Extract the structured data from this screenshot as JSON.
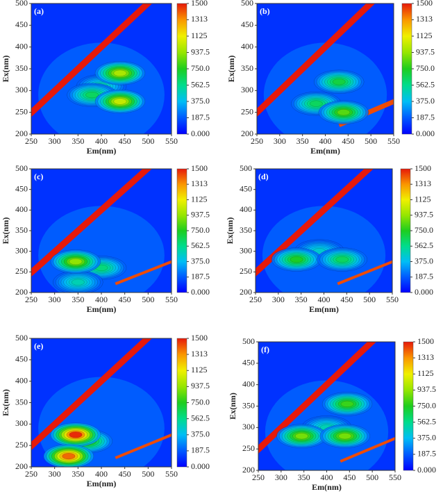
{
  "chart_data": [
    {
      "type": "heatmap",
      "label": "(a)",
      "xlabel": "Em(nm)",
      "ylabel": "Ex(nm)",
      "xlim": [
        250,
        550
      ],
      "ylim": [
        200,
        500
      ],
      "xticks": [
        250,
        300,
        350,
        400,
        450,
        500,
        550
      ],
      "yticks": [
        200,
        250,
        300,
        350,
        400,
        450,
        500
      ],
      "colorbar_lim": [
        0,
        1500
      ],
      "colorbar_ticks": [
        {
          "value": 0,
          "label": "0.000"
        },
        187.5,
        {
          "value": 375,
          "label": "375.0"
        },
        562.5,
        {
          "value": 750,
          "label": "750.0"
        },
        937.5,
        1125,
        1313,
        1500
      ],
      "x": [
        400,
        380,
        440,
        440
      ],
      "y": [
        310,
        290,
        340,
        275
      ],
      "values": [
        500,
        650,
        1000,
        1050
      ]
    },
    {
      "type": "heatmap",
      "label": "(b)",
      "xlabel": "Em(nm)",
      "ylabel": "Ex(nm)",
      "xlim": [
        250,
        550
      ],
      "ylim": [
        200,
        500
      ],
      "xticks": [
        250,
        300,
        350,
        400,
        450,
        500,
        550
      ],
      "yticks": [
        200,
        250,
        300,
        350,
        400,
        450,
        500
      ],
      "colorbar_lim": [
        0,
        1500
      ],
      "colorbar_ticks": [
        {
          "value": 0,
          "label": "0.000"
        },
        187.5,
        {
          "value": 375,
          "label": "375.0"
        },
        562.5,
        {
          "value": 750,
          "label": "750.0"
        },
        937.5,
        1125,
        1313,
        1500
      ],
      "x": [
        430,
        380,
        440
      ],
      "y": [
        320,
        270,
        250
      ],
      "values": [
        700,
        650,
        850
      ]
    },
    {
      "type": "heatmap",
      "label": "(c)",
      "xlabel": "Em(nm)",
      "ylabel": "Ex(nm)",
      "xlim": [
        250,
        550
      ],
      "ylim": [
        200,
        500
      ],
      "xticks": [
        250,
        300,
        350,
        400,
        450,
        500,
        550
      ],
      "yticks": [
        200,
        250,
        300,
        350,
        400,
        450,
        500
      ],
      "colorbar_lim": [
        0,
        1500
      ],
      "colorbar_ticks": [
        {
          "value": 0,
          "label": "0.000"
        },
        187.5,
        {
          "value": 375,
          "label": "375.0"
        },
        562.5,
        {
          "value": 750,
          "label": "750.0"
        },
        937.5,
        1125,
        1313,
        1500
      ],
      "x": [
        400,
        350,
        345
      ],
      "y": [
        260,
        225,
        275
      ],
      "values": [
        600,
        500,
        950
      ]
    },
    {
      "type": "heatmap",
      "label": "(d)",
      "xlabel": "Em(nm)",
      "ylabel": "Ex(nm)",
      "xlim": [
        250,
        550
      ],
      "ylim": [
        200,
        500
      ],
      "xticks": [
        250,
        300,
        350,
        400,
        450,
        500,
        550
      ],
      "yticks": [
        200,
        250,
        300,
        350,
        400,
        450,
        500
      ],
      "colorbar_lim": [
        0,
        1500
      ],
      "colorbar_ticks": [
        {
          "value": 0,
          "label": "0.000"
        },
        187.5,
        {
          "value": 375,
          "label": "375.0"
        },
        562.5,
        {
          "value": 750,
          "label": "750.0"
        },
        937.5,
        1125,
        1313,
        1500
      ],
      "x": [
        390,
        340,
        440
      ],
      "y": [
        300,
        280,
        280
      ],
      "values": [
        450,
        750,
        650
      ]
    },
    {
      "type": "heatmap",
      "label": "(e)",
      "xlabel": "Em(nm)",
      "ylabel": "Ex(nm)",
      "xlim": [
        250,
        550
      ],
      "ylim": [
        200,
        500
      ],
      "xticks": [
        250,
        300,
        350,
        400,
        450,
        500,
        550
      ],
      "yticks": [
        200,
        250,
        300,
        350,
        400,
        450,
        500
      ],
      "colorbar_lim": [
        0,
        1500
      ],
      "colorbar_ticks": [
        {
          "value": 0,
          "label": "0.000"
        },
        187.5,
        {
          "value": 375,
          "label": "375.0"
        },
        562.5,
        {
          "value": 750,
          "label": "750.0"
        },
        937.5,
        1125,
        1313,
        1500
      ],
      "x": [
        370,
        345,
        330
      ],
      "y": [
        260,
        275,
        225
      ],
      "values": [
        800,
        1500,
        1400
      ]
    },
    {
      "type": "heatmap",
      "label": "(f)",
      "xlabel": "Em(nm)",
      "ylabel": "Ex(nm)",
      "xlim": [
        250,
        550
      ],
      "ylim": [
        200,
        500
      ],
      "xticks": [
        250,
        300,
        350,
        400,
        450,
        500,
        550
      ],
      "yticks": [
        200,
        250,
        300,
        350,
        400,
        450,
        500
      ],
      "colorbar_lim": [
        0,
        1500
      ],
      "colorbar_ticks": [
        {
          "value": 0,
          "label": "0.000"
        },
        187.5,
        {
          "value": 375,
          "label": "375.0"
        },
        562.5,
        {
          "value": 750,
          "label": "750.0"
        },
        937.5,
        1125,
        1313,
        1500
      ],
      "x": [
        400,
        445,
        345,
        440
      ],
      "y": [
        300,
        355,
        280,
        280
      ],
      "values": [
        500,
        800,
        900,
        900
      ]
    }
  ]
}
